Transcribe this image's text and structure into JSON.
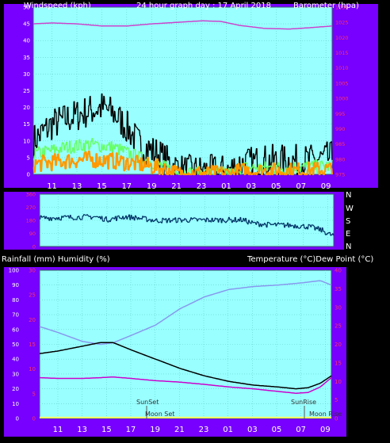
{
  "colors": {
    "page_bg": "#000000",
    "frame": "#7700ff",
    "plot_bg": "#99ffff",
    "grid": "#66cccc",
    "wind_max": "#000000",
    "wind_avg": "#66ff66",
    "wind_speed": "#ff9900",
    "barometer": "#cc44cc",
    "direction": "#003366",
    "temperature": "#000000",
    "humidity": "#8899ee",
    "dew_point": "#cc00cc",
    "rain": "#ffff66",
    "axis_left_text": "#ffffff",
    "axis_right_red": "#ff3366"
  },
  "header": {
    "windspeed_label": "Windspeed (kph)",
    "graph_title": "24 hour graph day : 17 April 2018",
    "barometer_label": "Barometer (hpa)"
  },
  "middle": {
    "dir_labels": [
      "N",
      "W",
      "S",
      "E",
      "N"
    ]
  },
  "lower_header": {
    "left_label": "Rainfall (mm)  Humidity (%)",
    "right_label": "Temperature (°C)Dew Point (°C)"
  },
  "annotations": {
    "sunset": "SunSet",
    "moonset": "Moon Set",
    "sunrise": "SunRise",
    "moonrise": "Moon Rise"
  },
  "chart_data": [
    {
      "type": "line",
      "id": "wind",
      "x_ticks": [
        "11",
        "13",
        "15",
        "17",
        "19",
        "21",
        "23",
        "01",
        "03",
        "05",
        "07",
        "09"
      ],
      "y_left_ticks": [
        "0",
        "5",
        "10",
        "15",
        "20",
        "25",
        "30",
        "35",
        "40",
        "45",
        "50"
      ],
      "y_right_ticks": [
        "975",
        "980",
        "985",
        "990",
        "995",
        "1000",
        "1005",
        "1010",
        "1015",
        "1020",
        "1025",
        "1030"
      ],
      "ylim_left": [
        0,
        50
      ],
      "ylim_right": [
        975,
        1030
      ],
      "time_range_hours": [
        9.5,
        33.4
      ],
      "series": [
        {
          "key": "wind_max",
          "kind": "noisy",
          "points": [
            [
              9.5,
              10
            ],
            [
              11,
              15
            ],
            [
              12.5,
              17
            ],
            [
              14,
              19
            ],
            [
              15,
              20
            ],
            [
              16,
              18
            ],
            [
              17,
              14
            ],
            [
              18,
              9
            ],
            [
              19.5,
              6
            ],
            [
              20.5,
              3
            ],
            [
              21.5,
              1
            ],
            [
              23,
              1
            ],
            [
              25,
              1
            ],
            [
              26,
              3
            ],
            [
              28,
              4
            ],
            [
              30,
              4
            ],
            [
              31.5,
              4
            ],
            [
              33.4,
              5
            ]
          ],
          "amp": 5
        },
        {
          "key": "wind_avg",
          "kind": "noisy",
          "points": [
            [
              9.5,
              6
            ],
            [
              12,
              8
            ],
            [
              14,
              9
            ],
            [
              16,
              8
            ],
            [
              18,
              5
            ],
            [
              19.5,
              3
            ],
            [
              21,
              0.5
            ],
            [
              25.5,
              0.3
            ],
            [
              26,
              2
            ],
            [
              30,
              2
            ],
            [
              33.4,
              2.5
            ]
          ],
          "amp": 2
        },
        {
          "key": "wind_speed",
          "kind": "noisy",
          "points": [
            [
              9.5,
              3
            ],
            [
              12,
              4
            ],
            [
              14,
              4.5
            ],
            [
              16,
              4
            ],
            [
              18,
              3
            ],
            [
              19.5,
              2
            ],
            [
              21,
              0.3
            ],
            [
              25.5,
              0.2
            ],
            [
              26,
              1
            ],
            [
              30,
              1
            ],
            [
              33.4,
              1.5
            ]
          ],
          "amp": 2.5
        },
        {
          "key": "barometer",
          "kind": "smooth",
          "axis": "right",
          "points": [
            [
              9.5,
              1024.5
            ],
            [
              11,
              1024.8
            ],
            [
              13,
              1024.5
            ],
            [
              15,
              1023.8
            ],
            [
              17,
              1023.8
            ],
            [
              19,
              1024.5
            ],
            [
              21,
              1025
            ],
            [
              23,
              1025.5
            ],
            [
              24.5,
              1025.3
            ],
            [
              26,
              1024
            ],
            [
              28,
              1023
            ],
            [
              30,
              1022.8
            ],
            [
              31.5,
              1023.2
            ],
            [
              33.4,
              1023.8
            ]
          ]
        }
      ]
    },
    {
      "type": "line",
      "id": "direction",
      "y_ticks": [
        "360",
        "270",
        "180",
        "90",
        "0"
      ],
      "ylim": [
        0,
        360
      ],
      "series": [
        {
          "key": "direction",
          "kind": "noisy",
          "points": [
            [
              9.5,
              195
            ],
            [
              12,
              200
            ],
            [
              14,
              205
            ],
            [
              15,
              185
            ],
            [
              16.5,
              205
            ],
            [
              18,
              190
            ],
            [
              19,
              178
            ],
            [
              21,
              182
            ],
            [
              25,
              182
            ],
            [
              26,
              183
            ],
            [
              26.8,
              160
            ],
            [
              28,
              150
            ],
            [
              30,
              145
            ],
            [
              31.5,
              135
            ],
            [
              32.5,
              110
            ],
            [
              33,
              85
            ],
            [
              33.4,
              75
            ]
          ],
          "amp": 18
        }
      ]
    },
    {
      "type": "line",
      "id": "temp_humidity",
      "y_left_ticks": [
        "0",
        "10",
        "20",
        "30",
        "40",
        "50",
        "60",
        "70",
        "80",
        "90",
        "100"
      ],
      "y_left_red_ticks": [
        "0",
        "5",
        "10",
        "15",
        "20",
        "25",
        "30"
      ],
      "y_right_ticks": [
        "0",
        "5",
        "10",
        "15",
        "20",
        "25",
        "30",
        "35",
        "40"
      ],
      "ylim_left": [
        0,
        100
      ],
      "ylim_right": [
        0,
        40
      ],
      "series": [
        {
          "key": "temperature",
          "kind": "smooth",
          "axis": "right",
          "points": [
            [
              9.5,
              17.5
            ],
            [
              11,
              18.2
            ],
            [
              13,
              19.5
            ],
            [
              14.5,
              20.5
            ],
            [
              15.5,
              20.5
            ],
            [
              17,
              18.5
            ],
            [
              19,
              16
            ],
            [
              21,
              13.5
            ],
            [
              23,
              11.5
            ],
            [
              25,
              10
            ],
            [
              27,
              9
            ],
            [
              29,
              8.5
            ],
            [
              30.5,
              8
            ],
            [
              31.5,
              8.3
            ],
            [
              32.5,
              9.5
            ],
            [
              33.4,
              11.5
            ]
          ]
        },
        {
          "key": "humidity",
          "kind": "smooth",
          "axis": "left",
          "points": [
            [
              9.5,
              62
            ],
            [
              11,
              58
            ],
            [
              13,
              52
            ],
            [
              14.5,
              50
            ],
            [
              15.5,
              51
            ],
            [
              17,
              56
            ],
            [
              19,
              63
            ],
            [
              21,
              74
            ],
            [
              23,
              82
            ],
            [
              25,
              87
            ],
            [
              27,
              89
            ],
            [
              29,
              90
            ],
            [
              31,
              91.5
            ],
            [
              32.5,
              93
            ],
            [
              33.4,
              90
            ]
          ]
        },
        {
          "key": "dew_point",
          "kind": "smooth",
          "axis": "right",
          "points": [
            [
              9.5,
              11
            ],
            [
              11,
              10.8
            ],
            [
              13,
              10.8
            ],
            [
              14.5,
              11
            ],
            [
              15.5,
              11.2
            ],
            [
              17,
              10.8
            ],
            [
              19,
              10.2
            ],
            [
              21,
              9.8
            ],
            [
              23,
              9.2
            ],
            [
              25,
              8.5
            ],
            [
              27,
              8
            ],
            [
              29,
              7.3
            ],
            [
              30.5,
              6.8
            ],
            [
              31.5,
              7
            ],
            [
              32.5,
              8.5
            ],
            [
              33.4,
              11
            ]
          ]
        },
        {
          "key": "rain",
          "kind": "flat",
          "axis": "left",
          "points": [
            [
              9.5,
              0.6
            ],
            [
              33.4,
              0.6
            ]
          ]
        }
      ]
    }
  ]
}
